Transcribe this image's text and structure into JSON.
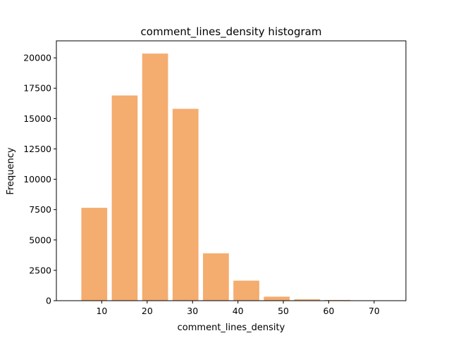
{
  "chart_data": {
    "type": "bar",
    "title": "comment_lines_density histogram",
    "xlabel": "comment_lines_density",
    "ylabel": "Frequency",
    "bar_color": "#f4ac6f",
    "bins": [
      {
        "x0": 5.0,
        "x1": 11.7,
        "value": 7650
      },
      {
        "x0": 11.7,
        "x1": 18.4,
        "value": 16900
      },
      {
        "x0": 18.4,
        "x1": 25.1,
        "value": 20350
      },
      {
        "x0": 25.1,
        "x1": 31.8,
        "value": 15800
      },
      {
        "x0": 31.8,
        "x1": 38.5,
        "value": 3900
      },
      {
        "x0": 38.5,
        "x1": 45.2,
        "value": 1650
      },
      {
        "x0": 45.2,
        "x1": 51.9,
        "value": 330
      },
      {
        "x0": 51.9,
        "x1": 58.6,
        "value": 120
      },
      {
        "x0": 58.6,
        "x1": 65.3,
        "value": 60
      },
      {
        "x0": 65.3,
        "x1": 72.0,
        "value": 15
      }
    ],
    "xlim": [
      0.0,
      77.0
    ],
    "ylim": [
      0,
      21400
    ],
    "xticks": [
      10,
      20,
      30,
      40,
      50,
      60,
      70
    ],
    "yticks": [
      0,
      2500,
      5000,
      7500,
      10000,
      12500,
      15000,
      17500,
      20000
    ],
    "grid": false,
    "legend": "none"
  }
}
